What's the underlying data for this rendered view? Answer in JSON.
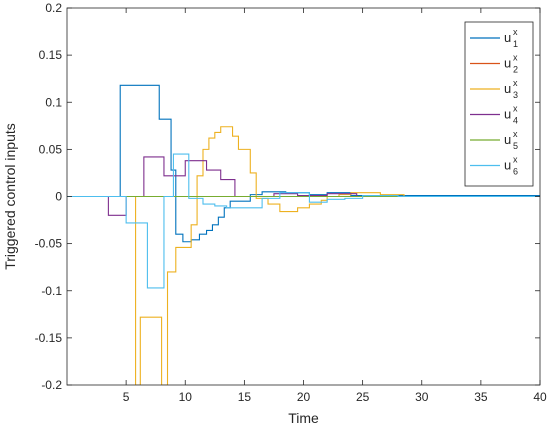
{
  "chart_data": {
    "type": "line",
    "step": true,
    "xlabel": "Time",
    "ylabel": "Triggered control inputs",
    "xlim": [
      0,
      40
    ],
    "ylim": [
      -0.2,
      0.2
    ],
    "xticks": [
      5,
      10,
      15,
      20,
      25,
      30,
      35,
      40
    ],
    "yticks": [
      -0.2,
      -0.15,
      -0.1,
      -0.05,
      0,
      0.05,
      0.1,
      0.15,
      0.2
    ],
    "ytick_labels": [
      "-0.2",
      "-0.15",
      "-0.1",
      "-0.05",
      "0",
      "0.05",
      "0.1",
      "0.15",
      "0.2"
    ],
    "grid": false,
    "box": true,
    "legend_position": "top-right",
    "series": [
      {
        "legend": {
          "base": "u",
          "sup": "x",
          "sub": "1"
        },
        "color": "#0072BD",
        "points": [
          [
            0,
            0
          ],
          [
            4.5,
            0
          ],
          [
            4.5,
            0.118
          ],
          [
            7.8,
            0.118
          ],
          [
            7.8,
            0.082
          ],
          [
            8.8,
            0.082
          ],
          [
            8.8,
            0.028
          ],
          [
            9.2,
            0.028
          ],
          [
            9.2,
            -0.04
          ],
          [
            9.8,
            -0.04
          ],
          [
            9.8,
            -0.048
          ],
          [
            10.5,
            -0.048
          ],
          [
            10.5,
            -0.046
          ],
          [
            11.2,
            -0.046
          ],
          [
            11.2,
            -0.04
          ],
          [
            11.8,
            -0.04
          ],
          [
            11.8,
            -0.036
          ],
          [
            12.3,
            -0.036
          ],
          [
            12.3,
            -0.03
          ],
          [
            12.8,
            -0.03
          ],
          [
            12.8,
            -0.022
          ],
          [
            13.3,
            -0.022
          ],
          [
            13.3,
            -0.012
          ],
          [
            13.8,
            -0.012
          ],
          [
            13.8,
            -0.005
          ],
          [
            15.5,
            -0.005
          ],
          [
            15.5,
            0.002
          ],
          [
            16.5,
            0.002
          ],
          [
            16.5,
            0.005
          ],
          [
            18.5,
            0.005
          ],
          [
            18.5,
            0.004
          ],
          [
            20.5,
            0.004
          ],
          [
            20.5,
            0.002
          ],
          [
            22,
            0.002
          ],
          [
            22,
            0.004
          ],
          [
            24,
            0.004
          ],
          [
            24,
            0.001
          ],
          [
            40,
            0.001
          ]
        ]
      },
      {
        "legend": {
          "base": "u",
          "sup": "x",
          "sub": "2"
        },
        "color": "#D95319",
        "points": [
          [
            0,
            0
          ],
          [
            40,
            0
          ]
        ]
      },
      {
        "legend": {
          "base": "u",
          "sup": "x",
          "sub": "3"
        },
        "color": "#EDB120",
        "points": [
          [
            0,
            0
          ],
          [
            5.8,
            0
          ],
          [
            5.8,
            -0.2
          ],
          [
            6.2,
            -0.2
          ],
          [
            6.2,
            -0.128
          ],
          [
            8.0,
            -0.128
          ],
          [
            8.0,
            -0.2
          ],
          [
            8.5,
            -0.2
          ],
          [
            8.5,
            -0.08
          ],
          [
            9.2,
            -0.08
          ],
          [
            9.2,
            -0.054
          ],
          [
            10.5,
            -0.054
          ],
          [
            10.5,
            -0.03
          ],
          [
            11.0,
            -0.03
          ],
          [
            11.0,
            0.022
          ],
          [
            11.5,
            0.022
          ],
          [
            11.5,
            0.05
          ],
          [
            12.0,
            0.05
          ],
          [
            12.0,
            0.062
          ],
          [
            12.5,
            0.062
          ],
          [
            12.5,
            0.068
          ],
          [
            13.0,
            0.068
          ],
          [
            13.0,
            0.074
          ],
          [
            14.0,
            0.074
          ],
          [
            14.0,
            0.064
          ],
          [
            14.5,
            0.064
          ],
          [
            14.5,
            0.05
          ],
          [
            15.5,
            0.05
          ],
          [
            15.5,
            0.025
          ],
          [
            16.0,
            0.025
          ],
          [
            16.0,
            -0.002
          ],
          [
            17.0,
            -0.002
          ],
          [
            17.0,
            -0.008
          ],
          [
            18.0,
            -0.008
          ],
          [
            18.0,
            -0.016
          ],
          [
            19.5,
            -0.016
          ],
          [
            19.5,
            -0.012
          ],
          [
            20.5,
            -0.012
          ],
          [
            20.5,
            -0.008
          ],
          [
            21.5,
            -0.008
          ],
          [
            21.5,
            -0.004
          ],
          [
            22.0,
            -0.004
          ],
          [
            22.0,
            0.0
          ],
          [
            23.0,
            0.0
          ],
          [
            23.0,
            0.002
          ],
          [
            24.0,
            0.002
          ],
          [
            24.0,
            0.004
          ],
          [
            26.5,
            0.004
          ],
          [
            26.5,
            0.002
          ],
          [
            28.5,
            0.002
          ],
          [
            28.5,
            0.0
          ],
          [
            40,
            0.0
          ]
        ]
      },
      {
        "legend": {
          "base": "u",
          "sup": "x",
          "sub": "4"
        },
        "color": "#7E2F8E",
        "points": [
          [
            0,
            0
          ],
          [
            3.5,
            0
          ],
          [
            3.5,
            -0.02
          ],
          [
            5.0,
            -0.02
          ],
          [
            5.0,
            0.0
          ],
          [
            6.5,
            0.0
          ],
          [
            6.5,
            0.042
          ],
          [
            8.2,
            0.042
          ],
          [
            8.2,
            0.022
          ],
          [
            10.0,
            0.022
          ],
          [
            10.0,
            0.038
          ],
          [
            11.8,
            0.038
          ],
          [
            11.8,
            0.028
          ],
          [
            13.0,
            0.028
          ],
          [
            13.0,
            0.018
          ],
          [
            14.2,
            0.018
          ],
          [
            14.2,
            0.0
          ],
          [
            17.5,
            0.0
          ],
          [
            17.5,
            0.003
          ],
          [
            19.5,
            0.003
          ],
          [
            19.5,
            0.001
          ],
          [
            22.0,
            0.001
          ],
          [
            22.0,
            0.003
          ],
          [
            24.5,
            0.003
          ],
          [
            24.5,
            0.0
          ],
          [
            40,
            0.0
          ]
        ]
      },
      {
        "legend": {
          "base": "u",
          "sup": "x",
          "sub": "5"
        },
        "color": "#77AC30",
        "points": [
          [
            0,
            0
          ],
          [
            40,
            0
          ]
        ]
      },
      {
        "legend": {
          "base": "u",
          "sup": "x",
          "sub": "6"
        },
        "color": "#4DBEEE",
        "points": [
          [
            0,
            0
          ],
          [
            5.0,
            0
          ],
          [
            5.0,
            -0.028
          ],
          [
            6.8,
            -0.028
          ],
          [
            6.8,
            -0.097
          ],
          [
            8.2,
            -0.097
          ],
          [
            8.2,
            0.0
          ],
          [
            9.0,
            0.0
          ],
          [
            9.0,
            0.045
          ],
          [
            10.3,
            0.045
          ],
          [
            10.3,
            -0.002
          ],
          [
            11.5,
            -0.002
          ],
          [
            11.5,
            -0.008
          ],
          [
            12.5,
            -0.008
          ],
          [
            12.5,
            -0.01
          ],
          [
            13.5,
            -0.01
          ],
          [
            13.5,
            -0.012
          ],
          [
            16.5,
            -0.012
          ],
          [
            16.5,
            -0.002
          ],
          [
            18.0,
            -0.002
          ],
          [
            18.0,
            0.004
          ],
          [
            20.5,
            0.004
          ],
          [
            20.5,
            -0.006
          ],
          [
            22.0,
            -0.006
          ],
          [
            22.0,
            -0.003
          ],
          [
            23.5,
            -0.003
          ],
          [
            23.5,
            -0.002
          ],
          [
            25.0,
            -0.002
          ],
          [
            25.0,
            0.001
          ],
          [
            28.0,
            0.001
          ],
          [
            28.0,
            0.0
          ],
          [
            40,
            0.0
          ]
        ]
      }
    ]
  }
}
